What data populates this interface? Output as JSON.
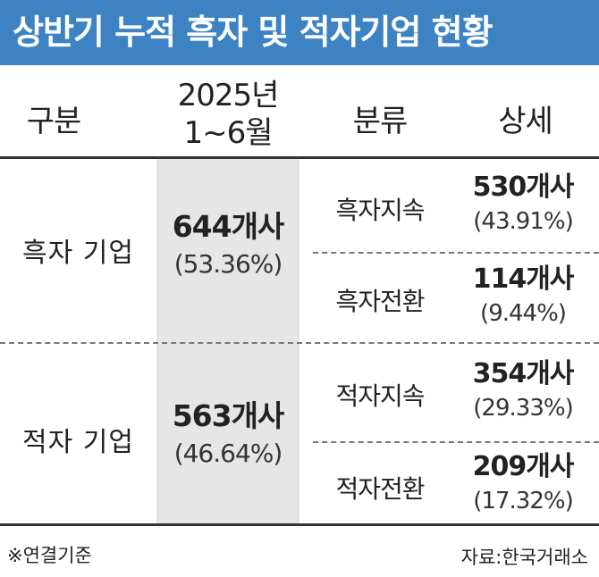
{
  "title": "상반기 누적 흑자 및 적자기업 현황",
  "headers": {
    "category": "구분",
    "period_line1": "2025년",
    "period_line2": "1~6월",
    "classification": "분류",
    "detail": "상세"
  },
  "groups": [
    {
      "label": "흑자 기업",
      "total_count": "644개사",
      "total_share": "(53.36%)",
      "rows": [
        {
          "label": "흑자지속",
          "count": "530개사",
          "share": "(43.91%)"
        },
        {
          "label": "흑자전환",
          "count": "114개사",
          "share": "(9.44%)"
        }
      ]
    },
    {
      "label": "적자 기업",
      "total_count": "563개사",
      "total_share": "(46.64%)",
      "rows": [
        {
          "label": "적자지속",
          "count": "354개사",
          "share": "(29.33%)"
        },
        {
          "label": "적자전환",
          "count": "209개사",
          "share": "(17.32%)"
        }
      ]
    }
  ],
  "footnote": "※연결기준",
  "source": "자료:한국거래소",
  "colors": {
    "title_bar": "#3d83c4",
    "shaded_column": "#e6e6e6"
  }
}
